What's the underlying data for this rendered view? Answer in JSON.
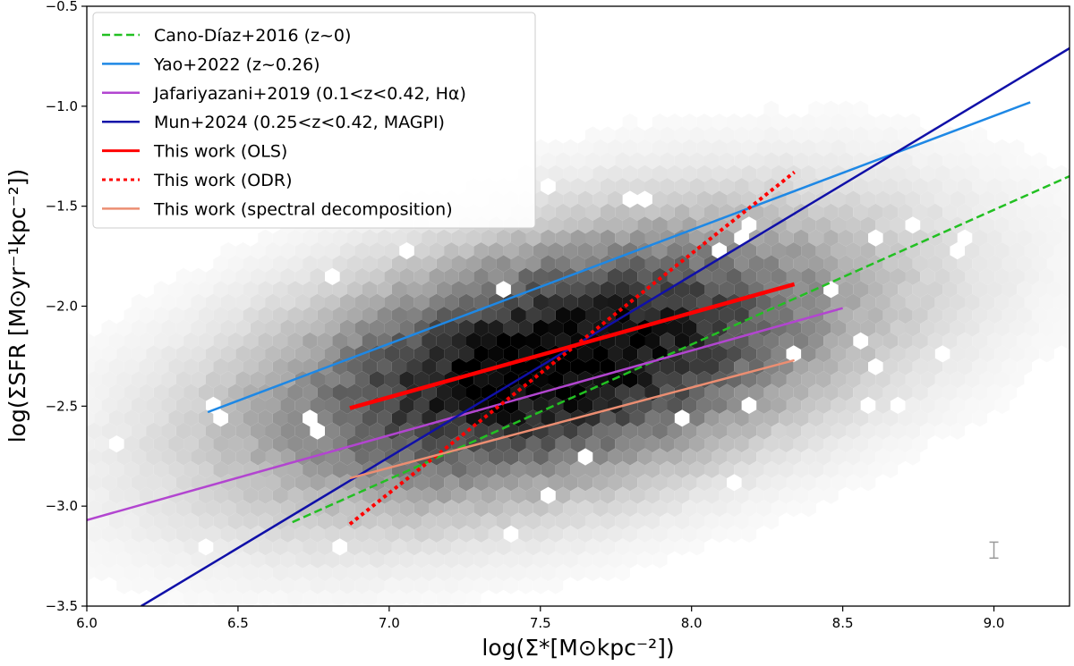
{
  "chart_data": {
    "type": "line",
    "title": "",
    "xlabel": "log(Σ*[M⊙kpc⁻²])",
    "ylabel": "log(ΣSFR [M⊙yr⁻¹kpc⁻²])",
    "xlim": [
      6.0,
      9.25
    ],
    "ylim": [
      -3.5,
      -0.5
    ],
    "x_ticks": [
      6.0,
      6.5,
      7.0,
      7.5,
      8.0,
      8.5,
      9.0
    ],
    "x_tick_labels": [
      "6.0",
      "6.5",
      "7.0",
      "7.5",
      "8.0",
      "8.5",
      "9.0"
    ],
    "y_ticks": [
      -3.5,
      -3.0,
      -2.5,
      -2.0,
      -1.5,
      -1.0,
      -0.5
    ],
    "y_tick_labels": [
      "−3.5",
      "−3.0",
      "−2.5",
      "−2.0",
      "−1.5",
      "−1.0",
      "−0.5"
    ],
    "legend_position": "top-left",
    "background_density": {
      "type": "hexbin",
      "color": "#000000",
      "center": [
        7.55,
        -2.28
      ],
      "spread": [
        0.65,
        0.45
      ],
      "correlation": 0.45
    },
    "error_bar": {
      "x": 9.0,
      "y_low": -3.26,
      "y_high": -3.18,
      "color": "#999999"
    },
    "series": [
      {
        "name": "Cano-Díaz+2016 (z~0)",
        "color": "#22c022",
        "style": "dashed",
        "width": 2.5,
        "x": [
          6.68,
          9.25
        ],
        "y": [
          -3.08,
          -1.35
        ]
      },
      {
        "name": "Yao+2022 (z~0.26)",
        "color": "#1e88e5",
        "style": "solid",
        "width": 2.5,
        "x": [
          6.4,
          9.12
        ],
        "y": [
          -2.53,
          -0.98
        ]
      },
      {
        "name": "Jafariyazani+2019 (0.1<z<0.42, Hα)",
        "color": "#b245d0",
        "style": "solid",
        "width": 2.5,
        "x": [
          6.0,
          8.5
        ],
        "y": [
          -3.07,
          -2.01
        ]
      },
      {
        "name": "Mun+2024 (0.25<z<0.42, MAGPI)",
        "color": "#1010a8",
        "style": "solid",
        "width": 2.5,
        "x": [
          6.18,
          9.25
        ],
        "y": [
          -3.5,
          -0.71
        ]
      },
      {
        "name": "This work (OLS)",
        "color": "#ff0000",
        "style": "solid",
        "width": 4.5,
        "x": [
          6.87,
          8.34
        ],
        "y": [
          -2.51,
          -1.89
        ]
      },
      {
        "name": "This work (ODR)",
        "color": "#ff0000",
        "style": "dotted",
        "width": 4,
        "x": [
          6.87,
          8.34
        ],
        "y": [
          -3.09,
          -1.33
        ]
      },
      {
        "name": "This work (spectral decomposition)",
        "color": "#ec8e72",
        "style": "solid",
        "width": 2.5,
        "x": [
          6.87,
          8.34
        ],
        "y": [
          -2.86,
          -2.27
        ]
      }
    ]
  }
}
